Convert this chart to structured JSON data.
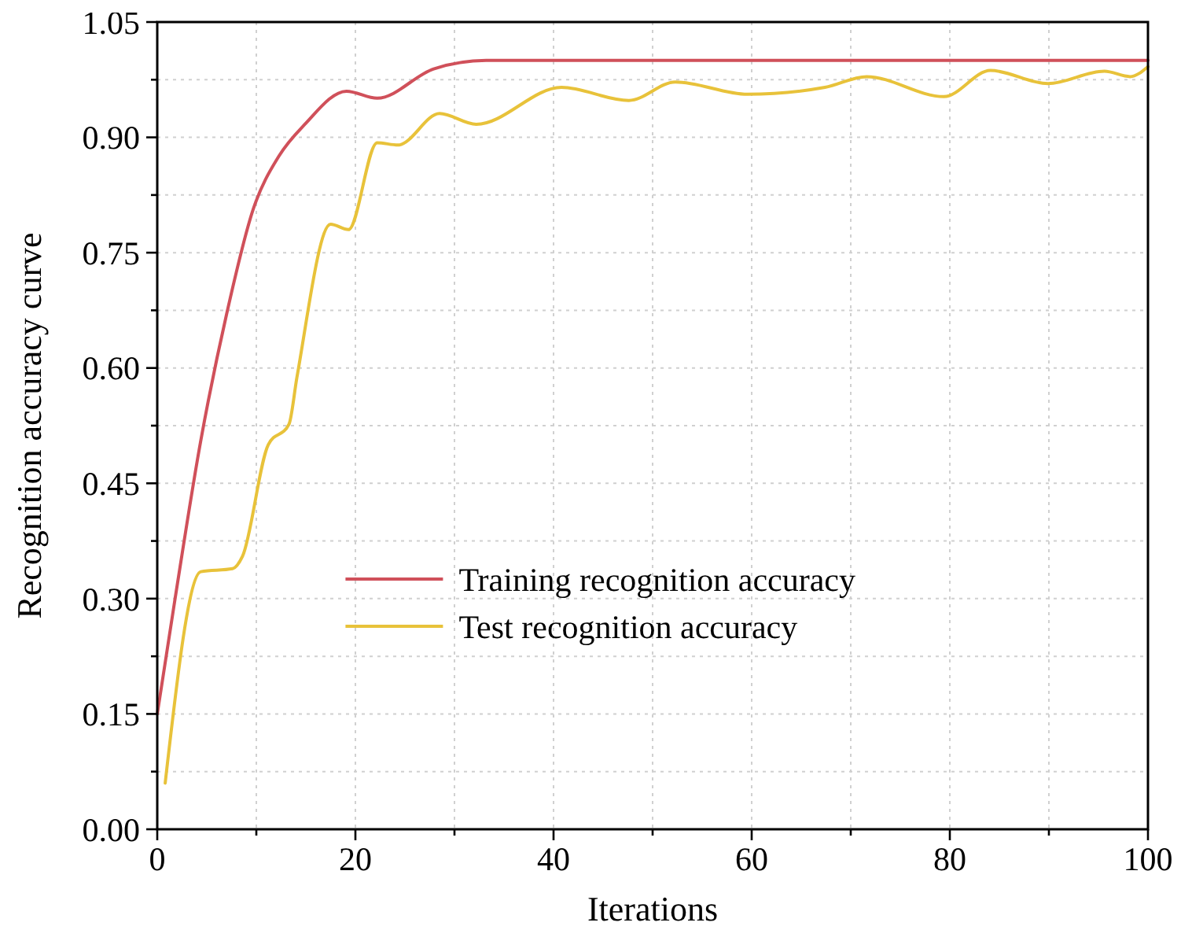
{
  "chart_data": {
    "type": "line",
    "xlabel": "Iterations",
    "ylabel": "Recognition accuracy curve",
    "xlim": [
      0,
      100
    ],
    "ylim": [
      0,
      1.05
    ],
    "xticks": [
      0,
      {
        "value": 10,
        "label": null
      },
      20,
      {
        "value": 30,
        "label": null
      },
      40,
      {
        "value": 50,
        "label": null
      },
      60,
      {
        "value": 70,
        "label": null
      },
      80,
      {
        "value": 90,
        "label": null
      },
      100
    ],
    "yticks": [
      {
        "value": 0,
        "label": "0.00"
      },
      {
        "value": 0.075,
        "label": null
      },
      0.15,
      {
        "value": 0.225,
        "label": null
      },
      {
        "value": 0.3,
        "label": "0.30"
      },
      {
        "value": 0.375,
        "label": null
      },
      0.45,
      {
        "value": 0.525,
        "label": null
      },
      {
        "value": 0.6,
        "label": "0.60"
      },
      {
        "value": 0.675,
        "label": null
      },
      0.75,
      {
        "value": 0.825,
        "label": null
      },
      {
        "value": 0.9,
        "label": "0.90"
      },
      {
        "value": 0.975,
        "label": null
      },
      1.05
    ],
    "grid": true,
    "legend": "center",
    "line_style": "solid",
    "marker": "none",
    "series": [
      {
        "name": "Training recognition accuracy",
        "color": "#d0505a",
        "x": [
          0,
          1.8,
          4.4,
          7,
          9.7,
          12.3,
          14.9,
          19.1,
          22.2,
          27.9,
          33.2,
          40,
          60,
          80,
          100
        ],
        "values": [
          0.15,
          0.3,
          0.506,
          0.67,
          0.807,
          0.876,
          0.917,
          0.96,
          0.951,
          0.989,
          1.0,
          1.0,
          1.0,
          1.0,
          1.0
        ]
      },
      {
        "name": "Test recognition accuracy",
        "color": "#e8c23a",
        "x": [
          0.8,
          4.4,
          7.6,
          8.6,
          11.2,
          13.3,
          14.1,
          17.5,
          19.3,
          22.2,
          24.3,
          28.5,
          32.2,
          40.8,
          47.6,
          52.3,
          59.6,
          67.4,
          71.6,
          79.4,
          84.1,
          89.9,
          95.6,
          98.2,
          100
        ],
        "values": [
          0.06,
          0.335,
          0.339,
          0.355,
          0.5,
          0.527,
          0.588,
          0.787,
          0.78,
          0.893,
          0.89,
          0.931,
          0.917,
          0.965,
          0.948,
          0.972,
          0.956,
          0.965,
          0.979,
          0.953,
          0.987,
          0.97,
          0.986,
          0.979,
          0.992
        ]
      }
    ]
  }
}
